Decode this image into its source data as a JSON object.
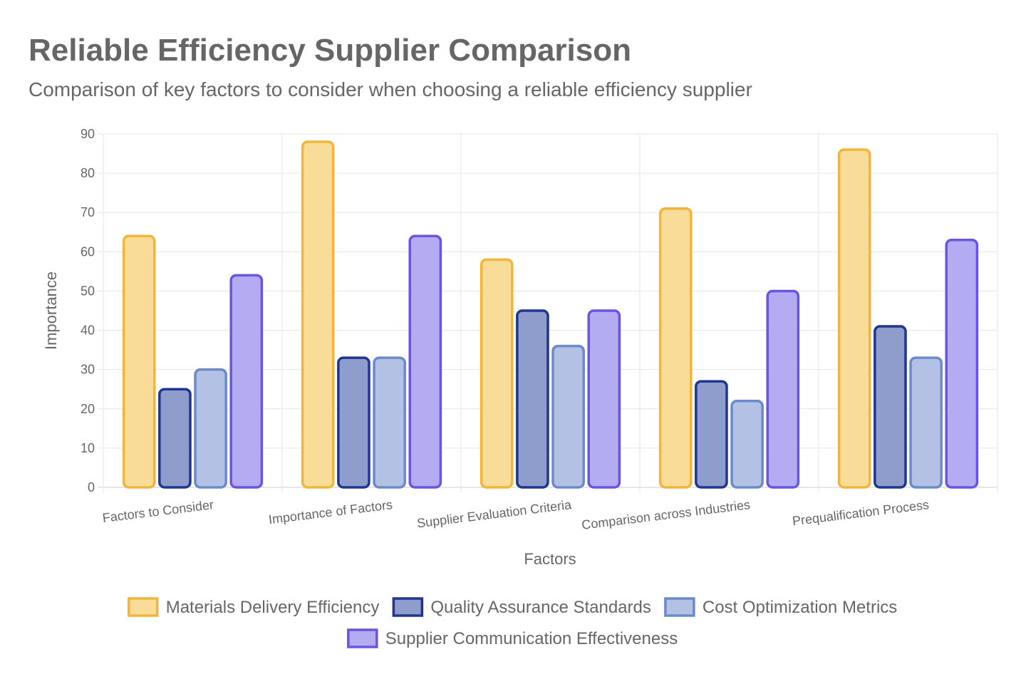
{
  "chart_data": {
    "type": "bar",
    "title": "Reliable Efficiency Supplier Comparison",
    "subtitle": "Comparison of key factors to consider when choosing a reliable efficiency supplier",
    "xlabel": "Factors",
    "ylabel": "Importance",
    "ylim": [
      0,
      90
    ],
    "ytick_step": 10,
    "grid": true,
    "legend_position": "bottom",
    "categories": [
      "Factors to Consider",
      "Importance of Factors",
      "Supplier Evaluation Criteria",
      "Comparison across Industries",
      "Prequalification Process"
    ],
    "series": [
      {
        "name": "Materials Delivery Efficiency",
        "values": [
          64,
          88,
          58,
          71,
          86
        ],
        "fill": "#f9dc98",
        "stroke": "#f2b53c"
      },
      {
        "name": "Quality Assurance Standards",
        "values": [
          25,
          33,
          45,
          27,
          41
        ],
        "fill": "#8f9dcc",
        "stroke": "#1f3590"
      },
      {
        "name": "Cost Optimization Metrics",
        "values": [
          30,
          33,
          36,
          22,
          33
        ],
        "fill": "#b3c2e4",
        "stroke": "#6b8acb"
      },
      {
        "name": "Supplier Communication Effectiveness",
        "values": [
          54,
          64,
          45,
          50,
          63
        ],
        "fill": "#b3acf3",
        "stroke": "#6b54e0"
      }
    ]
  }
}
